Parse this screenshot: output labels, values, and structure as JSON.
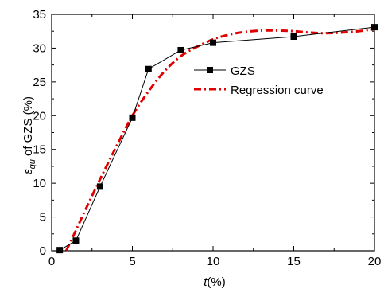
{
  "chart_data": {
    "type": "line",
    "xlabel": {
      "var": "t",
      "unit": "(%)"
    },
    "ylabel": {
      "var": "ε",
      "sub": "qu",
      "rest": " of GZS (%)"
    },
    "xlim": [
      0,
      20
    ],
    "ylim": [
      0,
      35
    ],
    "xticks": [
      0,
      5,
      10,
      15,
      20
    ],
    "yticks": [
      0,
      5,
      10,
      15,
      20,
      25,
      30,
      35
    ],
    "grid": false,
    "legend_placement": "center-right",
    "series": [
      {
        "name": "GZS",
        "style": "line-with-square-markers",
        "color": "#000000",
        "x": [
          0.5,
          1.5,
          3,
          5,
          6,
          8,
          10,
          15,
          20
        ],
        "y": [
          0.1,
          1.5,
          9.5,
          19.7,
          26.9,
          29.7,
          30.8,
          31.7,
          33.1
        ]
      },
      {
        "name": "Regression curve",
        "style": "dash-dot",
        "color": "#e00000",
        "x": [
          0.9,
          1.5,
          2,
          3,
          4,
          5,
          6,
          7,
          8,
          9,
          10,
          11,
          12,
          13,
          14,
          15,
          16,
          17,
          18,
          19,
          20
        ],
        "y": [
          0,
          3.0,
          5.6,
          10.6,
          15.4,
          20.0,
          23.6,
          26.6,
          28.8,
          30.2,
          31.3,
          32.0,
          32.4,
          32.6,
          32.6,
          32.5,
          32.3,
          32.2,
          32.3,
          32.5,
          32.8
        ]
      }
    ]
  }
}
